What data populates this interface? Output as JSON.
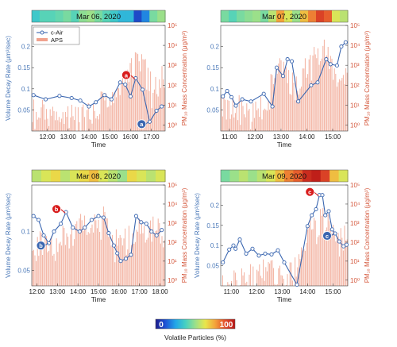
{
  "colorbar": {
    "min_label": "0",
    "max_label": "100",
    "label": "Volatile Particles (%)",
    "colors": [
      "#1c1c8c",
      "#1f55d6",
      "#22a6e8",
      "#46d0c2",
      "#9be08a",
      "#e8e64c",
      "#f4a23a",
      "#e24d2a",
      "#b81616"
    ]
  },
  "legend": {
    "series1": "c-Air",
    "series2": "APS"
  },
  "colors": {
    "decay": "#3a66b0",
    "aps": "#f0a28e",
    "annotation": "#d81c1c"
  },
  "chart_data": [
    {
      "type": "line",
      "title": "Mar 06, 2020",
      "xlabel": "Time",
      "ylabel_left": "Volume Decay Rate (μm³/sec)",
      "ylabel_right": "PM₁₀ Mass Concentration (μg/m³)",
      "x_ticks": [
        "12:00",
        "13:00",
        "14:00",
        "15:00",
        "16:00",
        "17:00"
      ],
      "y_ticks_left": [
        "0.05",
        "0.1",
        "0.15",
        "0.2"
      ],
      "y_ticks_right": [
        "10⁰",
        "10¹",
        "10²",
        "10³",
        "10⁴",
        "10⁵"
      ],
      "xlim": [
        "11:15",
        "17:40"
      ],
      "ylim_left": [
        0.0,
        0.25
      ],
      "ylim_right_log10": [
        -0.3,
        5
      ],
      "decay_series": {
        "name": "c-Air",
        "x": [
          "11:20",
          "11:55",
          "12:35",
          "13:10",
          "13:35",
          "14:00",
          "14:20",
          "14:45",
          "15:05",
          "15:30",
          "15:45",
          "16:00",
          "16:15",
          "16:35",
          "16:55",
          "17:15",
          "17:30"
        ],
        "values": [
          0.085,
          0.075,
          0.083,
          0.078,
          0.072,
          0.058,
          0.068,
          0.085,
          0.075,
          0.115,
          0.11,
          0.082,
          0.125,
          0.098,
          0.022,
          0.048,
          0.058
        ]
      },
      "aps_envelope": {
        "x": [
          "11:15",
          "11:45",
          "12:15",
          "12:45",
          "13:15",
          "13:45",
          "14:15",
          "14:45",
          "15:15",
          "15:35",
          "15:45",
          "16:00",
          "16:20",
          "16:40",
          "17:00",
          "17:20",
          "17:40"
        ],
        "values": [
          25,
          20,
          20,
          30,
          10,
          12,
          15,
          100,
          200,
          900,
          1200,
          5000,
          8000,
          15000,
          600,
          400,
          3000
        ]
      },
      "volatile_strip": [
        35,
        40,
        40,
        42,
        45,
        40,
        48,
        50,
        45,
        40,
        35,
        30,
        30,
        10,
        20,
        45,
        50
      ],
      "annotations": [
        {
          "label": "a",
          "kind": "red"
        },
        {
          "label": "a",
          "kind": "blue"
        }
      ]
    },
    {
      "type": "line",
      "title": "Mar 07, 2020",
      "xlabel": "Time",
      "ylabel_left": "",
      "ylabel_right": "PM₁₀ Mass Concentration (μg/m³)",
      "x_ticks": [
        "11:00",
        "12:00",
        "13:00",
        "14:00",
        "15:00"
      ],
      "y_ticks_left": [
        "0.05",
        "0.1",
        "0.15",
        "0.2"
      ],
      "y_ticks_right": [
        "10⁰",
        "10¹",
        "10²",
        "10³",
        "10⁴",
        "10⁵"
      ],
      "xlim": [
        "10:40",
        "15:35"
      ],
      "ylim_left": [
        0.0,
        0.25
      ],
      "ylim_right_log10": [
        -0.3,
        5
      ],
      "decay_series": {
        "name": "c-Air",
        "x": [
          "10:45",
          "10:55",
          "11:05",
          "11:15",
          "11:30",
          "11:50",
          "12:20",
          "12:40",
          "12:50",
          "13:05",
          "13:15",
          "13:25",
          "13:40",
          "14:10",
          "14:25",
          "14:45",
          "14:55",
          "15:10",
          "15:20",
          "15:30"
        ],
        "values": [
          0.082,
          0.095,
          0.08,
          0.06,
          0.075,
          0.07,
          0.088,
          0.058,
          0.15,
          0.13,
          0.17,
          0.165,
          0.07,
          0.108,
          0.115,
          0.17,
          0.158,
          0.155,
          0.2,
          0.21
        ]
      },
      "aps_envelope": {
        "x": [
          "10:40",
          "11:00",
          "11:20",
          "11:40",
          "12:00",
          "12:20",
          "12:40",
          "13:00",
          "13:20",
          "13:40",
          "14:00",
          "14:20",
          "14:40",
          "15:00",
          "15:20",
          "15:35"
        ],
        "values": [
          50,
          30,
          40,
          20,
          30,
          40,
          600,
          8000,
          1000,
          400,
          6000,
          20000,
          30000,
          3000,
          2000,
          1000
        ]
      },
      "volatile_strip": [
        45,
        40,
        45,
        48,
        50,
        45,
        55,
        75,
        60,
        50,
        70,
        80,
        90,
        85,
        60,
        55
      ],
      "annotations": []
    },
    {
      "type": "line",
      "title": "Mar 08, 2020",
      "xlabel": "Time",
      "ylabel_left": "Volume Decay Rate (μm³/sec)",
      "ylabel_right": "PM₁₀ Mass Concentration (μg/m³)",
      "x_ticks": [
        "12:00",
        "13:00",
        "14:00",
        "15:00",
        "16:00",
        "17:00",
        "18:00"
      ],
      "y_ticks_left": [
        "0.05",
        "0.1"
      ],
      "y_ticks_right": [
        "10⁰",
        "10¹",
        "10²",
        "10³",
        "10⁴",
        "10⁵"
      ],
      "xlim": [
        "11:45",
        "18:15"
      ],
      "ylim_left": [
        0.03,
        0.16
      ],
      "ylim_right_log10": [
        -0.3,
        5
      ],
      "decay_series": {
        "name": "c-Air",
        "x": [
          "11:50",
          "12:05",
          "12:20",
          "12:35",
          "12:50",
          "13:10",
          "13:25",
          "13:45",
          "14:05",
          "14:20",
          "14:40",
          "15:00",
          "15:15",
          "15:30",
          "15:45",
          "15:55",
          "16:05",
          "16:20",
          "16:35",
          "16:50",
          "17:05",
          "17:20",
          "17:35",
          "17:50",
          "18:05"
        ],
        "values": [
          0.12,
          0.115,
          0.095,
          0.085,
          0.1,
          0.11,
          0.125,
          0.105,
          0.1,
          0.105,
          0.115,
          0.12,
          0.118,
          0.098,
          0.082,
          0.072,
          0.062,
          0.065,
          0.07,
          0.12,
          0.112,
          0.11,
          0.1,
          0.095,
          0.102
        ]
      },
      "aps_envelope": {
        "x": [
          "11:45",
          "12:15",
          "12:45",
          "13:15",
          "13:45",
          "14:15",
          "14:45",
          "15:15",
          "15:45",
          "16:15",
          "16:45",
          "17:15",
          "17:45",
          "18:15"
        ],
        "values": [
          100,
          600,
          200,
          1500,
          800,
          5000,
          3000,
          8000,
          900,
          600,
          2000,
          1500,
          4000,
          1000
        ]
      },
      "volatile_strip": [
        55,
        60,
        65,
        55,
        60,
        65,
        70,
        60,
        55,
        50,
        65,
        60,
        55,
        60
      ],
      "annotations": [
        {
          "label": "b",
          "kind": "red"
        },
        {
          "label": "b",
          "kind": "blue"
        }
      ]
    },
    {
      "type": "line",
      "title": "Mar 09, 2020",
      "xlabel": "Time",
      "ylabel_left": "Volume Decay Rate (μm³/sec)",
      "ylabel_right": "PM₁₀ Mass Concentration (μg/m³)",
      "x_ticks": [
        "11:00",
        "12:00",
        "13:00",
        "14:00",
        "15:00"
      ],
      "y_ticks_left": [
        "0.05",
        "0.1",
        "0.15",
        "0.2"
      ],
      "y_ticks_right": [
        "10⁰",
        "10¹",
        "10²",
        "10³",
        "10⁴",
        "10⁵"
      ],
      "xlim": [
        "10:35",
        "15:35"
      ],
      "ylim_left": [
        0.0,
        0.25
      ],
      "ylim_right_log10": [
        -0.3,
        5
      ],
      "decay_series": {
        "name": "c-Air",
        "x": [
          "10:40",
          "10:55",
          "11:05",
          "11:10",
          "11:20",
          "11:35",
          "11:50",
          "12:05",
          "12:20",
          "12:35",
          "12:50",
          "13:05",
          "13:35",
          "14:00",
          "14:10",
          "14:20",
          "14:28",
          "14:35",
          "14:42",
          "14:50",
          "14:58",
          "15:05",
          "15:15",
          "15:25",
          "15:32"
        ],
        "values": [
          0.058,
          0.09,
          0.1,
          0.092,
          0.115,
          0.08,
          0.092,
          0.075,
          0.08,
          0.078,
          0.088,
          0.058,
          0.003,
          0.148,
          0.175,
          0.19,
          0.225,
          0.225,
          0.175,
          0.185,
          0.14,
          0.13,
          0.11,
          0.098,
          0.102
        ]
      },
      "aps_envelope": {
        "x": [
          "10:35",
          "11:00",
          "11:30",
          "12:00",
          "12:30",
          "13:00",
          "13:20",
          "13:40",
          "14:00",
          "14:20",
          "14:40",
          "15:00",
          "15:20",
          "15:35"
        ],
        "values": [
          2,
          3,
          5,
          10,
          15,
          8,
          10,
          40,
          2000,
          5000,
          9000,
          3000,
          800,
          700
        ]
      },
      "volatile_strip": [
        45,
        50,
        55,
        50,
        55,
        60,
        70,
        80,
        85,
        95,
        98,
        90,
        70,
        60
      ],
      "annotations": [
        {
          "label": "c",
          "kind": "red"
        },
        {
          "label": "c",
          "kind": "blue"
        }
      ]
    }
  ]
}
